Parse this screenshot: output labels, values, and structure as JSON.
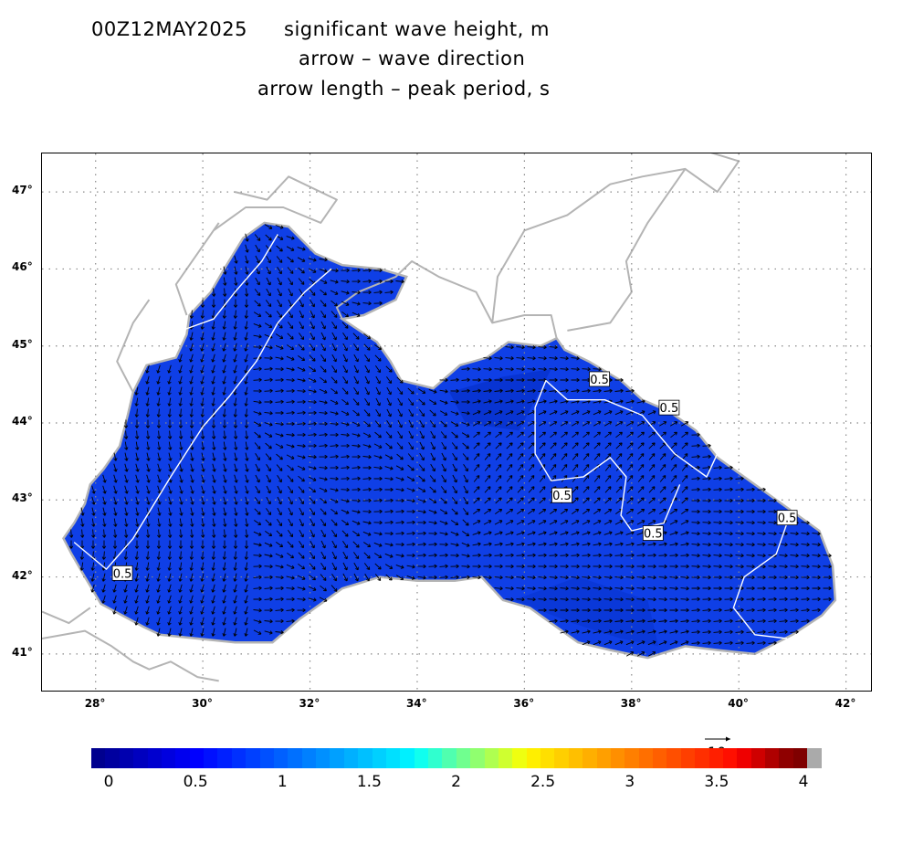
{
  "header": {
    "datetime": "00Z12MAY2025",
    "line1": "significant wave height, m",
    "line2": "arrow – wave direction",
    "line3": "arrow length –  peak period, s"
  },
  "map": {
    "lon_range": [
      27,
      42.5
    ],
    "lat_range": [
      40.5,
      47.5
    ],
    "lon_ticks": [
      "28°",
      "30°",
      "32°",
      "34°",
      "36°",
      "38°",
      "40°",
      "42°"
    ],
    "lat_ticks": [
      "47°",
      "46°",
      "45°",
      "44°",
      "43°",
      "42°",
      "41°"
    ],
    "contour_labels": [
      "0.5",
      "0.5",
      "0.5",
      "0.5",
      "0.5",
      "0.5"
    ],
    "sea_color": "#0f3fe6",
    "coast_color": "#b4b4b4",
    "contour_color": "#ffffff"
  },
  "colorbar": {
    "min": 0,
    "max": 4,
    "labels": [
      "0",
      "0.5",
      "1",
      "1.5",
      "2",
      "2.5",
      "3",
      "3.5",
      "4"
    ],
    "colors": [
      "#00008f",
      "#00009f",
      "#0000af",
      "#0000bf",
      "#0000cf",
      "#0000df",
      "#0000ef",
      "#0000ff",
      "#0010ff",
      "#0020ff",
      "#0030ff",
      "#0040ff",
      "#0050ff",
      "#0060ff",
      "#0070ff",
      "#0080ff",
      "#0090ff",
      "#00a0ff",
      "#00b0ff",
      "#00c0ff",
      "#00d0ff",
      "#00e0ff",
      "#00f0ff",
      "#10ffef",
      "#30ffcf",
      "#50ffaf",
      "#70ff8f",
      "#90ff6f",
      "#afff50",
      "#cfff30",
      "#efff10",
      "#ffef00",
      "#ffdf00",
      "#ffcf00",
      "#ffbf00",
      "#ffaf00",
      "#ff9f00",
      "#ff8f00",
      "#ff7f00",
      "#ff6f00",
      "#ff5f00",
      "#ff4f00",
      "#ff3f00",
      "#ff2f00",
      "#ff1f00",
      "#ff0f00",
      "#ef0000",
      "#cf0000",
      "#af0000",
      "#8f0000",
      "#7f0000",
      "#aaaaaa"
    ]
  },
  "reference_arrow": {
    "label": "10"
  }
}
